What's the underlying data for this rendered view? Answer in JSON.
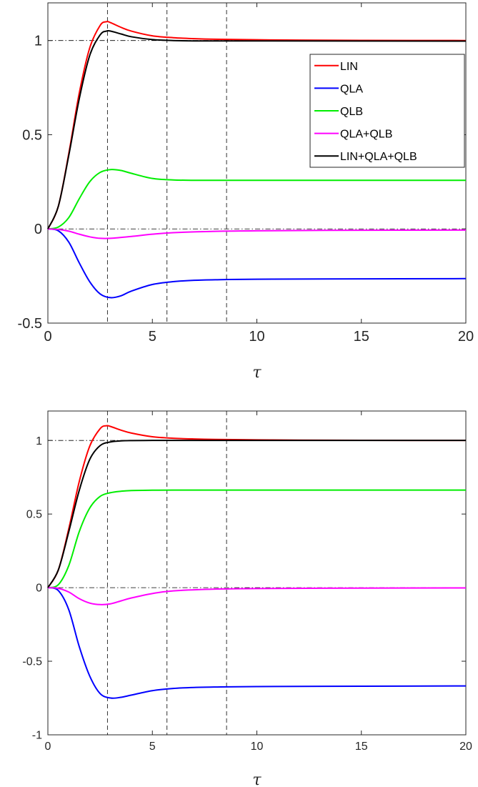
{
  "chart_data": [
    {
      "type": "line",
      "xlabel": "τ",
      "ylabel": "",
      "xlim": [
        0,
        20
      ],
      "ylim": [
        -0.5,
        1.2
      ],
      "xticks": [
        0,
        5,
        10,
        15,
        20
      ],
      "yticks": [
        -0.5,
        0,
        0.5,
        1
      ],
      "legend": "top-right",
      "reference_lines": {
        "horizontal": [
          1,
          0
        ],
        "vertical": [
          2.85,
          5.7,
          8.55
        ]
      },
      "series": [
        {
          "name": "LIN",
          "color": "#ff0000",
          "x": [
            0,
            0.5,
            1,
            1.5,
            2,
            2.5,
            2.8,
            3,
            3.5,
            4,
            5,
            6,
            7,
            8,
            10,
            12,
            15,
            20
          ],
          "y": [
            0,
            0.12,
            0.4,
            0.72,
            0.96,
            1.08,
            1.1,
            1.095,
            1.07,
            1.05,
            1.025,
            1.015,
            1.01,
            1.007,
            1.004,
            1.002,
            1.001,
            1.0
          ]
        },
        {
          "name": "QLA",
          "color": "#0000ff",
          "x": [
            0,
            0.5,
            1,
            1.5,
            2,
            2.5,
            3,
            3.5,
            4,
            5,
            6,
            7,
            8,
            10,
            15,
            20
          ],
          "y": [
            0,
            -0.01,
            -0.07,
            -0.18,
            -0.28,
            -0.345,
            -0.365,
            -0.355,
            -0.33,
            -0.295,
            -0.28,
            -0.273,
            -0.27,
            -0.267,
            -0.265,
            -0.264
          ]
        },
        {
          "name": "QLB",
          "color": "#00ee00",
          "x": [
            0,
            0.5,
            1,
            1.5,
            2,
            2.5,
            3,
            3.5,
            4,
            5,
            6,
            7,
            8,
            10,
            15,
            20
          ],
          "y": [
            0,
            0.01,
            0.06,
            0.16,
            0.25,
            0.3,
            0.315,
            0.31,
            0.295,
            0.268,
            0.26,
            0.258,
            0.258,
            0.258,
            0.258,
            0.258
          ]
        },
        {
          "name": "QLA+QLB",
          "color": "#ff00ff",
          "x": [
            0,
            0.5,
            1,
            1.5,
            2,
            2.5,
            3,
            4,
            5,
            6,
            8,
            10,
            15,
            20
          ],
          "y": [
            0,
            -0.003,
            -0.012,
            -0.028,
            -0.042,
            -0.05,
            -0.05,
            -0.04,
            -0.028,
            -0.02,
            -0.013,
            -0.01,
            -0.007,
            -0.006
          ]
        },
        {
          "name": "LIN+QLA+QLB",
          "color": "#000000",
          "x": [
            0,
            0.5,
            1,
            1.5,
            2,
            2.5,
            2.8,
            3,
            3.5,
            4,
            5,
            6,
            7,
            8,
            10,
            20
          ],
          "y": [
            0,
            0.12,
            0.39,
            0.69,
            0.92,
            1.03,
            1.05,
            1.05,
            1.035,
            1.02,
            1.005,
            1.0,
            0.998,
            0.998,
            0.998,
            0.997
          ]
        }
      ]
    },
    {
      "type": "line",
      "xlabel": "τ",
      "ylabel": "",
      "xlim": [
        0,
        20
      ],
      "ylim": [
        -1,
        1.2
      ],
      "xticks": [
        0,
        5,
        10,
        15,
        20
      ],
      "yticks": [
        -1,
        -0.5,
        0,
        0.5,
        1
      ],
      "reference_lines": {
        "horizontal": [
          1,
          0
        ],
        "vertical": [
          2.85,
          5.7,
          8.55
        ]
      },
      "series": [
        {
          "name": "LIN",
          "color": "#ff0000",
          "x": [
            0,
            0.5,
            1,
            1.5,
            2,
            2.5,
            2.8,
            3,
            3.5,
            4,
            5,
            6,
            7,
            8,
            10,
            12,
            15,
            20
          ],
          "y": [
            0,
            0.12,
            0.4,
            0.72,
            0.96,
            1.08,
            1.1,
            1.095,
            1.07,
            1.05,
            1.025,
            1.015,
            1.01,
            1.007,
            1.004,
            1.002,
            1.001,
            1.0
          ]
        },
        {
          "name": "QLA",
          "color": "#0000ff",
          "x": [
            0,
            0.5,
            1,
            1.5,
            2,
            2.5,
            3,
            3.5,
            4,
            5,
            6,
            7,
            8,
            10,
            15,
            20
          ],
          "y": [
            0,
            -0.02,
            -0.15,
            -0.4,
            -0.6,
            -0.72,
            -0.75,
            -0.745,
            -0.73,
            -0.7,
            -0.685,
            -0.678,
            -0.675,
            -0.672,
            -0.67,
            -0.668
          ]
        },
        {
          "name": "QLB",
          "color": "#00ee00",
          "x": [
            0,
            0.5,
            1,
            1.5,
            2,
            2.5,
            3,
            3.5,
            4,
            5,
            6,
            8,
            10,
            15,
            20
          ],
          "y": [
            0,
            0.02,
            0.15,
            0.38,
            0.54,
            0.62,
            0.645,
            0.655,
            0.66,
            0.662,
            0.663,
            0.663,
            0.663,
            0.663,
            0.663
          ]
        },
        {
          "name": "QLA+QLB",
          "color": "#ff00ff",
          "x": [
            0,
            0.5,
            1,
            1.5,
            2,
            2.5,
            3,
            3.5,
            4,
            5,
            6,
            8,
            10,
            15,
            20
          ],
          "y": [
            0,
            -0.005,
            -0.03,
            -0.075,
            -0.105,
            -0.115,
            -0.11,
            -0.09,
            -0.07,
            -0.04,
            -0.022,
            -0.01,
            -0.006,
            -0.003,
            -0.002
          ]
        },
        {
          "name": "LIN+QLA+QLB",
          "color": "#000000",
          "x": [
            0,
            0.5,
            1,
            1.5,
            2,
            2.5,
            3,
            3.5,
            4,
            5,
            6,
            8,
            10,
            15,
            20
          ],
          "y": [
            0,
            0.12,
            0.38,
            0.66,
            0.87,
            0.965,
            0.99,
            0.997,
            0.999,
            1.0,
            1.0,
            1.0,
            1.0,
            1.0,
            1.0
          ]
        }
      ]
    }
  ]
}
